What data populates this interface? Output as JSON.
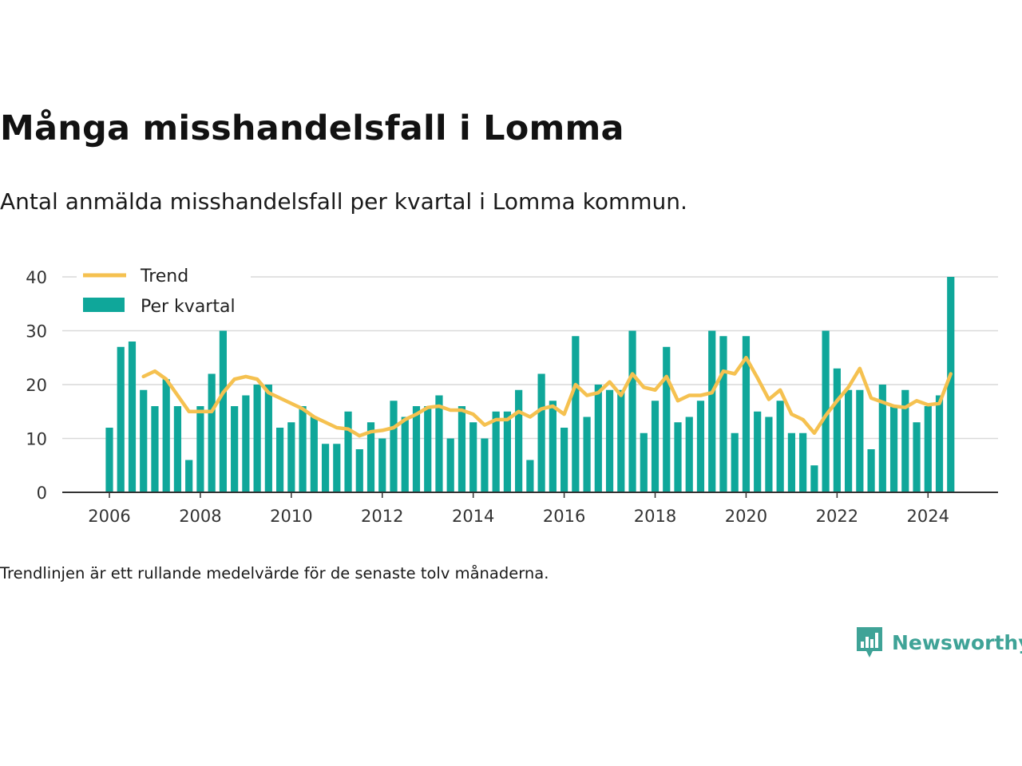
{
  "title": "Många misshandelsfall i Lomma",
  "subtitle": "Antal anmälda misshandelsfall per kvartal i Lomma kommun.",
  "note": "Trendlinjen är ett rullande medelvärde för de senaste tolv månaderna.",
  "brand": {
    "name": "Newsworthy",
    "color": "#3fa397",
    "icon": "newsworthy-logo-icon"
  },
  "colors": {
    "bars": "#0fa79a",
    "trend": "#f5c150",
    "grid": "#d9d9d9",
    "axis": "#333333"
  },
  "chart_data": {
    "type": "bar",
    "legend": [
      "Trend",
      "Per kvartal"
    ],
    "legend_placement": "top-left",
    "xlabel": "",
    "ylabel": "",
    "ylim": [
      0,
      40
    ],
    "yticks": [
      0,
      10,
      20,
      30,
      40
    ],
    "xticks": [
      "2006",
      "2008",
      "2010",
      "2012",
      "2014",
      "2016",
      "2018",
      "2020",
      "2022",
      "2024"
    ],
    "grid": true,
    "x_start": "2006 Q1",
    "series": [
      {
        "name": "Per kvartal",
        "type": "bar",
        "values": [
          12,
          27,
          28,
          19,
          16,
          21,
          16,
          6,
          16,
          22,
          30,
          16,
          18,
          20,
          20,
          12,
          13,
          16,
          14,
          9,
          9,
          15,
          8,
          13,
          10,
          17,
          14,
          16,
          16,
          18,
          10,
          16,
          13,
          10,
          15,
          15,
          19,
          6,
          22,
          17,
          12,
          29,
          14,
          20,
          19,
          19,
          30,
          11,
          17,
          27,
          13,
          14,
          17,
          30,
          29,
          11,
          29,
          15,
          14,
          17,
          11,
          11,
          5,
          30,
          23,
          19,
          19,
          8,
          20,
          16,
          19,
          13,
          16,
          18,
          40
        ]
      },
      {
        "name": "Trend",
        "type": "line",
        "start_index": 3,
        "values": [
          21.5,
          22.5,
          21,
          18,
          15,
          15,
          15,
          18.5,
          21,
          21.5,
          21,
          18.5,
          17.5,
          16.5,
          15.5,
          14,
          13,
          12,
          11.75,
          10.5,
          11.25,
          11.5,
          12,
          13.5,
          14.5,
          15.75,
          16,
          15.25,
          15.25,
          14.5,
          12.5,
          13.5,
          13.5,
          15,
          14,
          15.5,
          16,
          14.5,
          20,
          18,
          18.5,
          20.5,
          18,
          22,
          19.5,
          19,
          21.5,
          17,
          18,
          18,
          18.5,
          22.5,
          22,
          25,
          21.25,
          17.25,
          19,
          14.5,
          13.5,
          11,
          14.25,
          17,
          19.5,
          23,
          17.5,
          16.75,
          16,
          15.75,
          17,
          16.25,
          16.5,
          22
        ]
      }
    ]
  }
}
